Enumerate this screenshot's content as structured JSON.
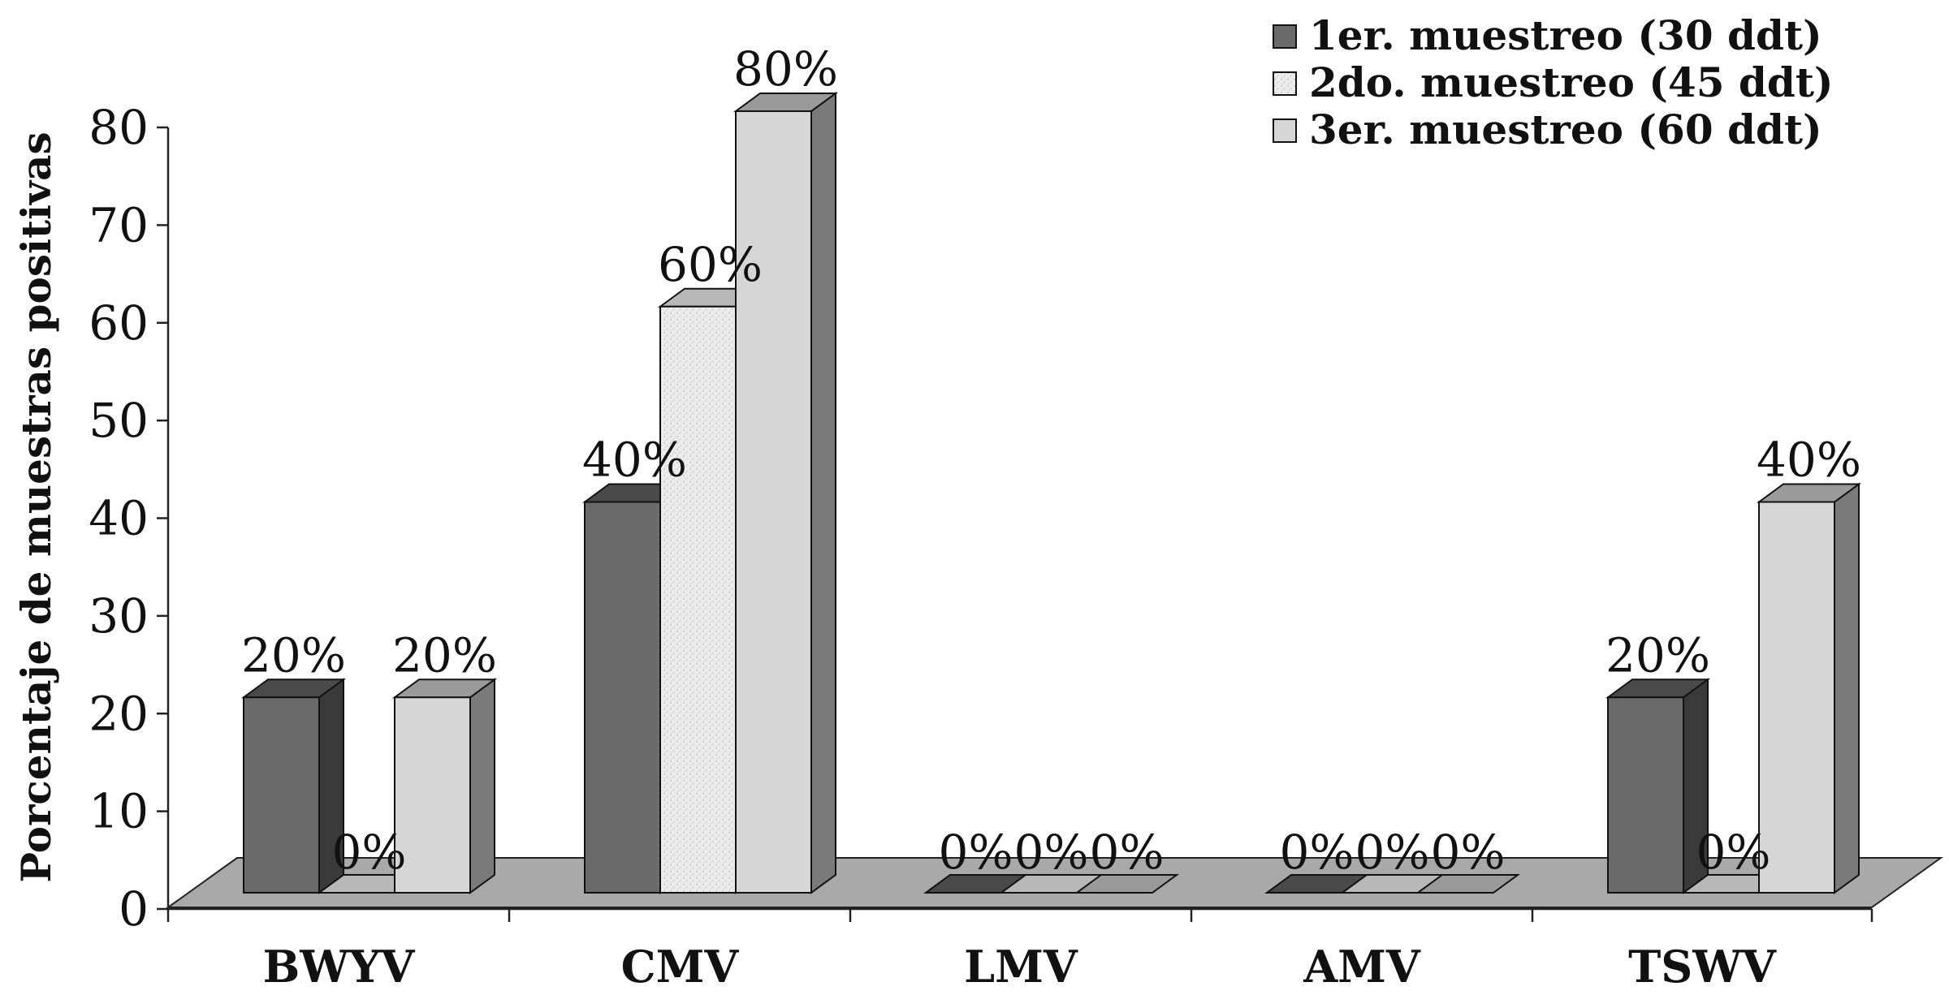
{
  "chart_data": {
    "type": "bar",
    "ylabel": "Porcentaje de muestras positivas",
    "xlabel": "",
    "title": "",
    "ylim": [
      0,
      80
    ],
    "yticks": [
      "0",
      "10",
      "20",
      "30",
      "40",
      "50",
      "60",
      "70",
      "80"
    ],
    "categories": [
      "BWYV",
      "CMV",
      "LMV",
      "AMV",
      "TSWV"
    ],
    "series": [
      {
        "name": "1er. muestreo (30 ddt)",
        "values": [
          20,
          40,
          0,
          0,
          20
        ],
        "labels": [
          "20%",
          "40%",
          "0%",
          "0%",
          "20%"
        ],
        "color": "#6a6a6a"
      },
      {
        "name": "2do. muestreo (45 ddt)",
        "values": [
          0,
          60,
          0,
          0,
          0
        ],
        "labels": [
          "0%",
          "60%",
          "0%",
          "0%",
          "0%"
        ],
        "color": "#e8e8e8"
      },
      {
        "name": "3er. muestreo (60 ddt)",
        "values": [
          20,
          80,
          0,
          0,
          40
        ],
        "labels": [
          "20%",
          "80%",
          "0%",
          "0%",
          "40%"
        ],
        "color": "#d6d6d6"
      }
    ],
    "legend_position": "top-right",
    "grid": false,
    "style": "3d-clustered-column"
  }
}
